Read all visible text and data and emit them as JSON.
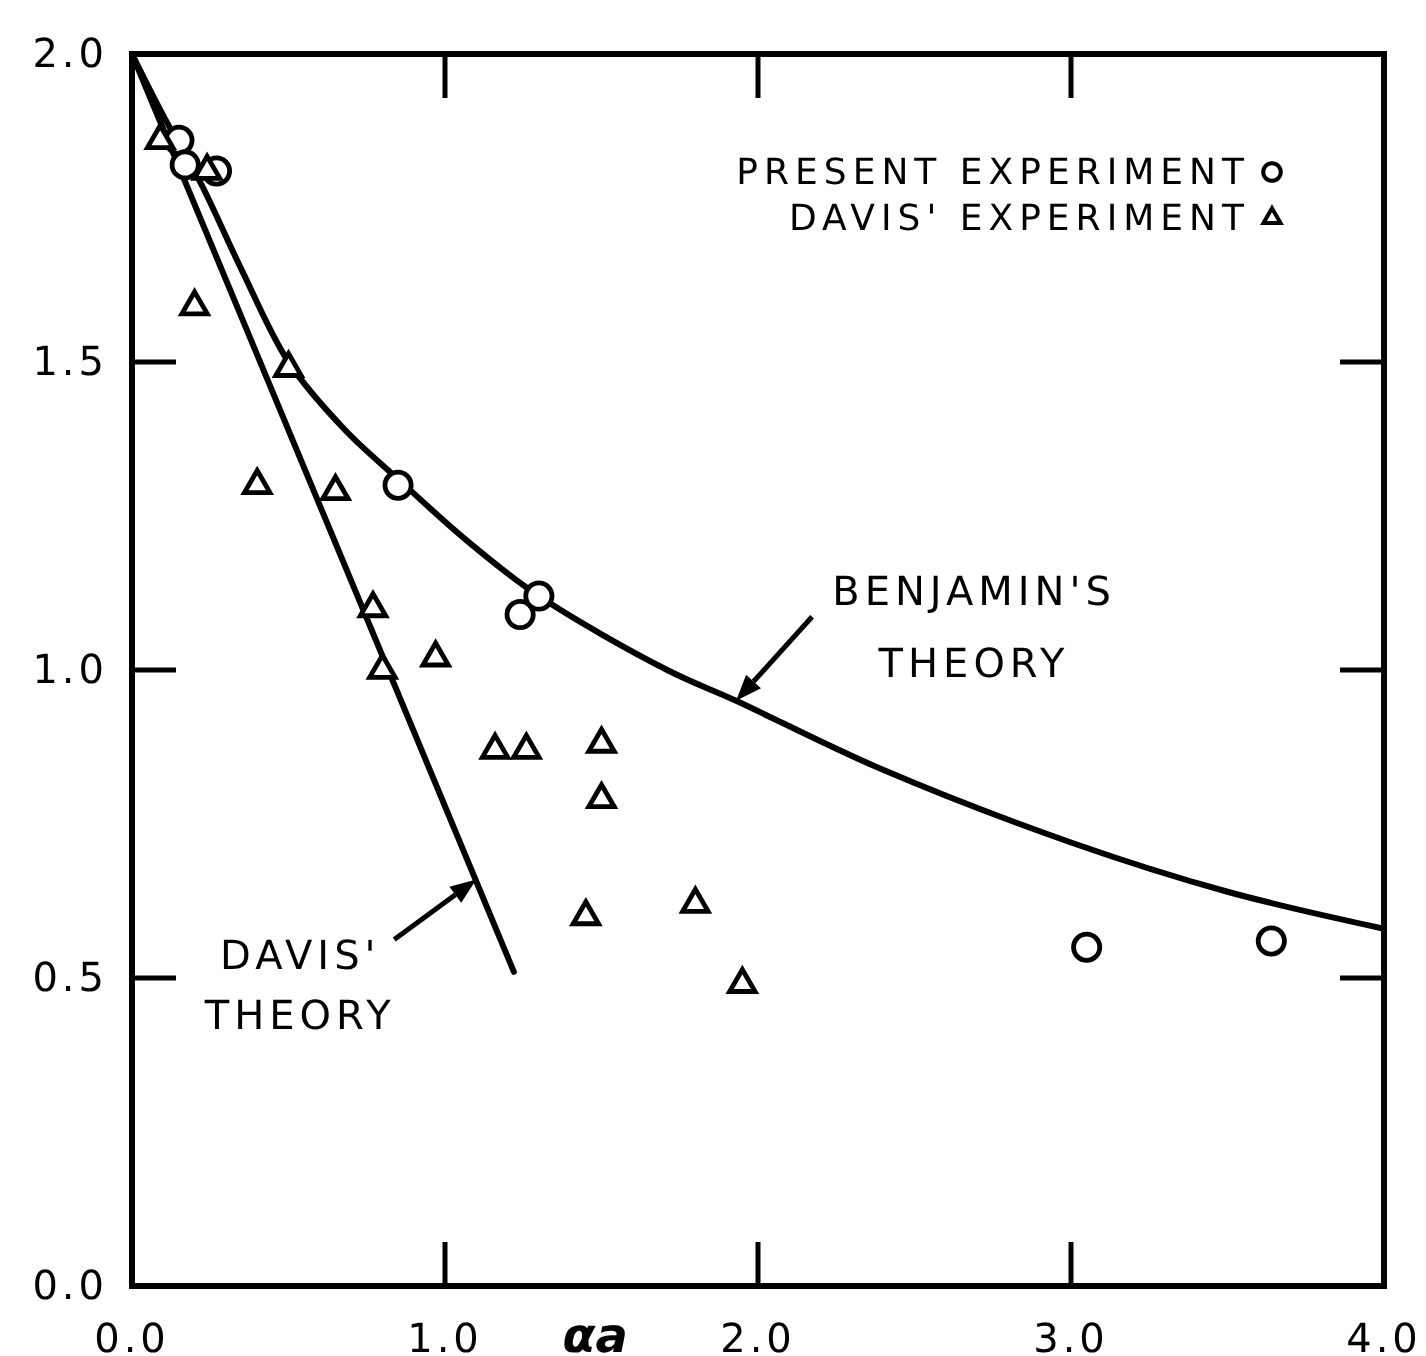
{
  "chart_data": {
    "type": "scatter",
    "xlabel": "αa",
    "xlim": [
      0,
      4
    ],
    "ylim": [
      0,
      2
    ],
    "xticks": [
      {
        "value": 0,
        "label": "0.0"
      },
      {
        "value": 1,
        "label": "1.0"
      },
      {
        "value": 2,
        "label": "2.0"
      },
      {
        "value": 3,
        "label": "3.0"
      },
      {
        "value": 4,
        "label": "4.0"
      }
    ],
    "yticks": [
      {
        "value": 0,
        "label": "0.0"
      },
      {
        "value": 0.5,
        "label": "0.5"
      },
      {
        "value": 1,
        "label": "1.0"
      },
      {
        "value": 1.5,
        "label": "1.5"
      },
      {
        "value": 2,
        "label": "2.0"
      }
    ],
    "legend": "top right",
    "series": [
      {
        "type": "line",
        "color": "#000000",
        "x": [
          0,
          0.1,
          0.22,
          0.35,
          0.5,
          0.68,
          0.85,
          1.07,
          1.3,
          1.71,
          1.93,
          2.39,
          3.0,
          3.5,
          4.0
        ],
        "values": [
          2.0,
          1.9,
          1.79,
          1.65,
          1.5,
          1.39,
          1.31,
          1.21,
          1.12,
          1.0,
          0.95,
          0.84,
          0.72,
          0.64,
          0.58
        ]
      },
      {
        "type": "line",
        "color": "#000000",
        "x": [
          0,
          1.22
        ],
        "values": [
          2.0,
          0.51
        ]
      },
      {
        "name": "PRESENT EXPERIMENT",
        "marker": "circle",
        "color": "#000000",
        "x": [
          0.15,
          0.17,
          0.27,
          0.85,
          1.24,
          1.3,
          3.05,
          3.64
        ],
        "values": [
          1.86,
          1.82,
          1.81,
          1.3,
          1.09,
          1.12,
          0.55,
          0.56
        ]
      },
      {
        "name": "DAVIS' EXPERIMENT",
        "marker": "triangle",
        "color": "#000000",
        "x": [
          0.09,
          0.24,
          0.2,
          0.5,
          0.4,
          0.65,
          0.77,
          0.8,
          0.97,
          1.16,
          1.26,
          1.5,
          1.5,
          1.45,
          1.8,
          1.95
        ],
        "values": [
          1.86,
          1.81,
          1.59,
          1.49,
          1.3,
          1.29,
          1.1,
          1.0,
          1.02,
          0.87,
          0.87,
          0.88,
          0.79,
          0.6,
          0.62,
          0.49
        ]
      }
    ],
    "annotations": [
      {
        "text": "BENJAMIN'S THEORY",
        "x": 1.93,
        "y": 0.95
      },
      {
        "text": "DAVIS' THEORY",
        "x": 1.1,
        "y": 0.66
      }
    ]
  }
}
